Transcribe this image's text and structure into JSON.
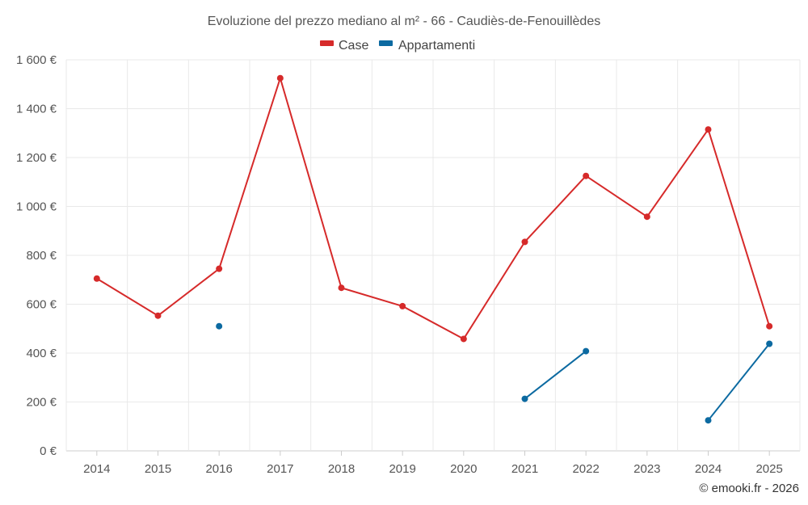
{
  "chart_data": {
    "type": "line",
    "title": "Evoluzione del prezzo mediano al m² - 66 - Caudiès-de-Fenouillèdes",
    "x": [
      "2014",
      "2015",
      "2016",
      "2017",
      "2018",
      "2019",
      "2020",
      "2021",
      "2022",
      "2023",
      "2024",
      "2025"
    ],
    "ylim": [
      0,
      1600
    ],
    "yticks": [
      0,
      200,
      400,
      600,
      800,
      1000,
      1200,
      1400,
      1600
    ],
    "ytick_labels": [
      "0 €",
      "200 €",
      "400 €",
      "600 €",
      "800 €",
      "1 000 €",
      "1 200 €",
      "1 400 €",
      "1 600 €"
    ],
    "grid": true,
    "legend_position": "top-center",
    "series": [
      {
        "name": "Case",
        "color": "#d62a2a",
        "values": [
          705,
          553,
          745,
          1525,
          667,
          592,
          458,
          855,
          1125,
          958,
          1315,
          510
        ]
      },
      {
        "name": "Appartamenti",
        "color": "#0c6aa1",
        "values": [
          null,
          null,
          510,
          null,
          null,
          null,
          null,
          213,
          408,
          null,
          125,
          438
        ]
      }
    ],
    "credit": "© emooki.fr - 2026"
  }
}
